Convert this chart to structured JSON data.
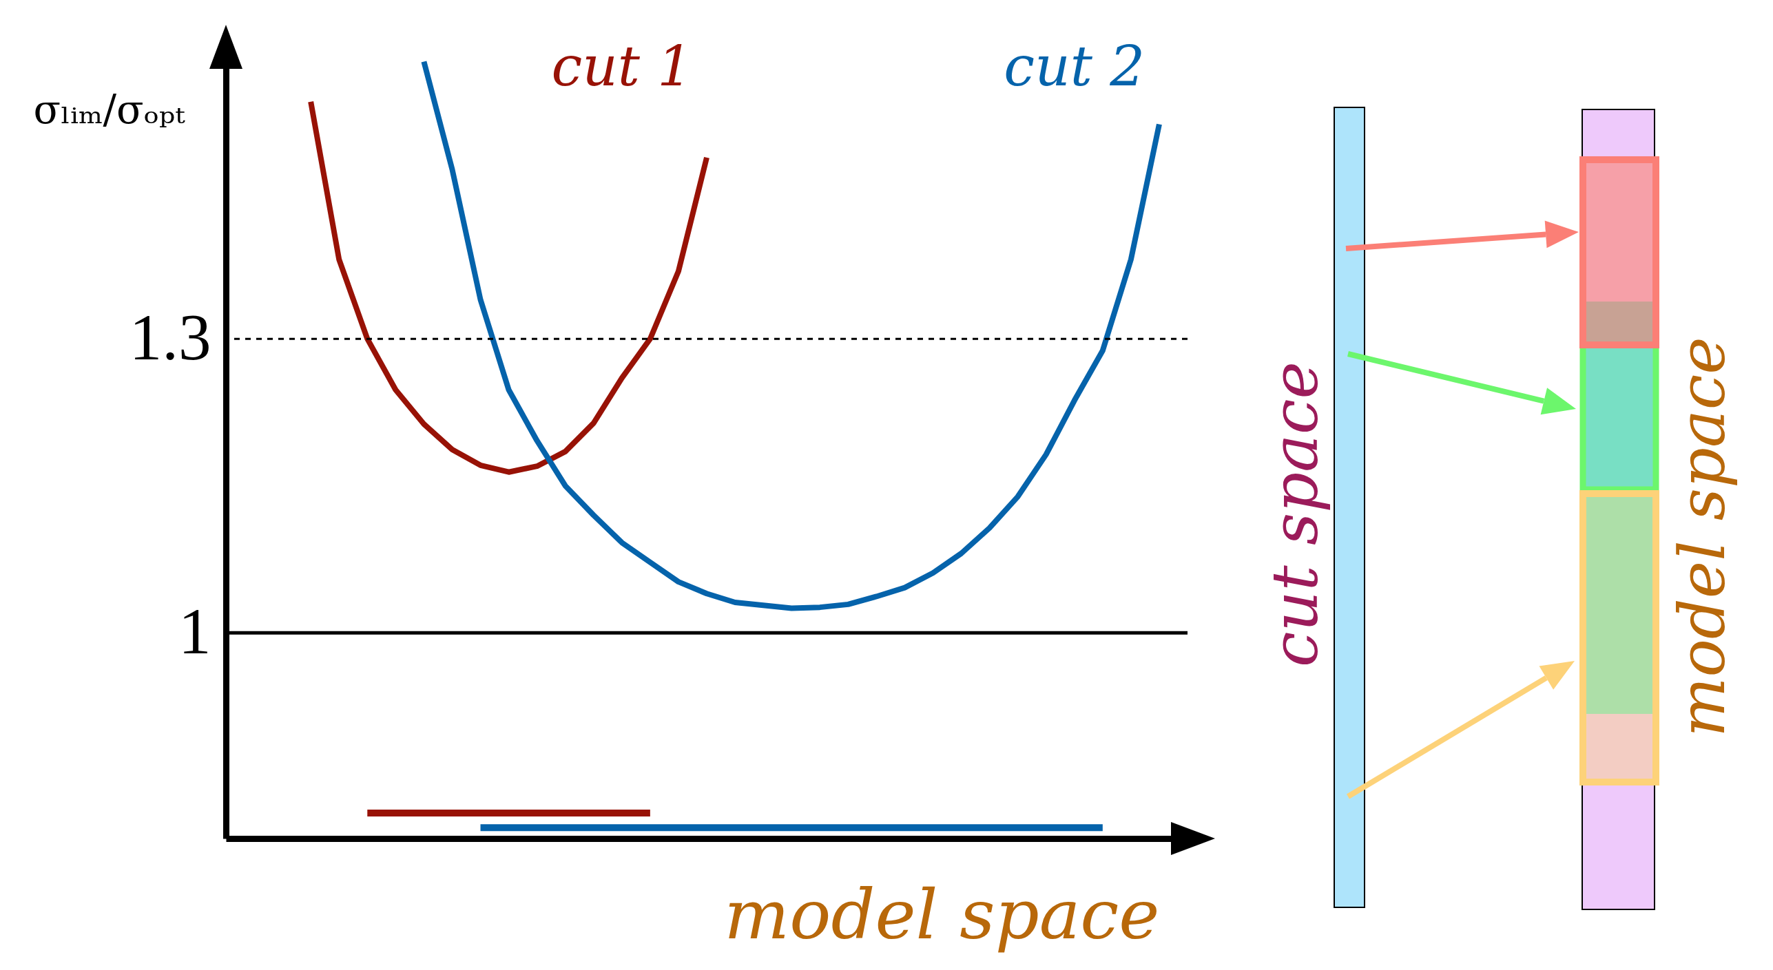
{
  "chart_data": {
    "type": "line",
    "categories": [
      null,
      null,
      null,
      null,
      null,
      null,
      null,
      null,
      null,
      null,
      null,
      null,
      null,
      null,
      null,
      null,
      null,
      null,
      null,
      null,
      null,
      null,
      null,
      null,
      null,
      null,
      null,
      null,
      null,
      null,
      null,
      null,
      null,
      null,
      null
    ],
    "series": [
      {
        "name": "cut 1",
        "color": "#981206",
        "values": [
          null,
          null,
          null,
          1.542,
          1.381,
          1.3,
          1.248,
          1.213,
          1.187,
          1.171,
          1.164,
          1.17,
          1.185,
          1.214,
          1.26,
          1.3,
          1.369,
          1.485,
          null,
          null,
          null,
          null,
          null,
          null,
          null,
          null,
          null,
          null,
          null,
          null,
          null,
          null,
          null,
          null,
          null
        ]
      },
      {
        "name": "cut 2",
        "color": "#0563ab",
        "values": [
          null,
          null,
          null,
          null,
          null,
          null,
          null,
          1.583,
          1.473,
          1.34,
          1.248,
          1.196,
          1.15,
          1.12,
          1.092,
          1.072,
          1.052,
          1.04,
          1.031,
          1.028,
          1.025,
          1.026,
          1.029,
          1.037,
          1.046,
          1.061,
          1.081,
          1.107,
          1.139,
          1.182,
          1.237,
          1.288,
          1.381,
          1.519,
          null
        ]
      },
      {
        "color": "#981206",
        "values": [
          null,
          null,
          null,
          null,
          null,
          0.816,
          0.816,
          0.816,
          0.816,
          0.816,
          0.816,
          0.816,
          0.816,
          0.816,
          0.816,
          0.816,
          null,
          null,
          null,
          null,
          null,
          null,
          null,
          null,
          null,
          null,
          null,
          null,
          null,
          null,
          null,
          null,
          null,
          null,
          null
        ]
      },
      {
        "color": "#0563ab",
        "values": [
          null,
          null,
          null,
          null,
          null,
          null,
          null,
          null,
          null,
          0.801,
          0.801,
          0.801,
          0.801,
          0.801,
          0.801,
          0.801,
          0.801,
          0.801,
          0.801,
          0.801,
          0.801,
          0.801,
          0.801,
          0.801,
          0.801,
          0.801,
          0.801,
          0.801,
          0.801,
          0.801,
          0.801,
          0.801,
          null,
          null,
          null
        ]
      }
    ],
    "ylabel": "σₗᵢₘ/σₒₚₜ",
    "xlabel": "model space",
    "ylim": [
      0.79,
      1.61
    ],
    "yticks": [
      1,
      1.3
    ],
    "ref_lines": [
      {
        "axis": "y",
        "value": 1,
        "color": "#000000"
      },
      {
        "axis": "y",
        "value": 1.3,
        "color": "#000000",
        "line_style": "dashed"
      }
    ],
    "tick_labels": "y",
    "annotations": [
      "cut space",
      "model space"
    ]
  }
}
